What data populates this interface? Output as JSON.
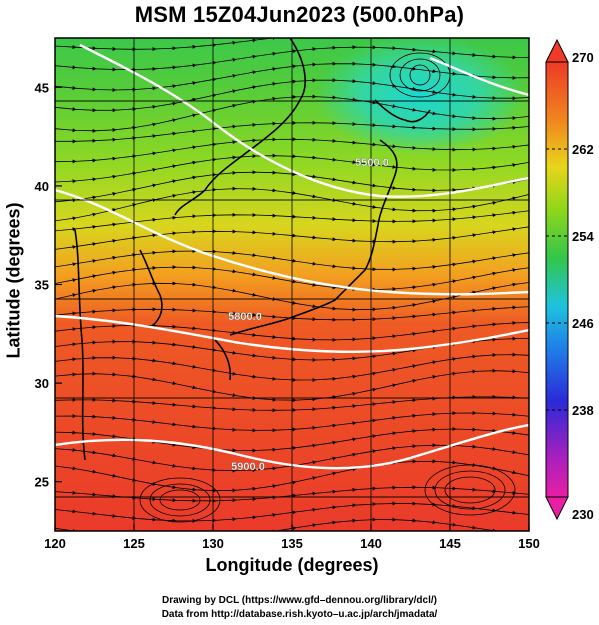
{
  "title": "MSM 15Z04Jun2023 (500.0hPa)",
  "x_axis": {
    "label": "Longitude (degrees)",
    "ticks": [
      "120",
      "125",
      "130",
      "135",
      "140",
      "145",
      "150"
    ]
  },
  "y_axis": {
    "label": "Latitude  (degrees)",
    "ticks": [
      "25",
      "30",
      "35",
      "40",
      "45"
    ]
  },
  "colorbar": {
    "ticks": [
      "270",
      "262",
      "254",
      "246",
      "238",
      "230"
    ],
    "min": 230,
    "max": 270,
    "stops": [
      "#e91fa3",
      "#a020c0",
      "#2a2ad8",
      "#1aa0e6",
      "#22d3c6",
      "#39c33a",
      "#8fd61a",
      "#e8d51a",
      "#f08a1e",
      "#ee3a26"
    ]
  },
  "contours": [
    {
      "label": "5900.0",
      "lat_hint": 25.8
    },
    {
      "label": "5800.0",
      "lat_hint": 33.4
    },
    {
      "label": "5500.0",
      "lat_hint": 41.2
    }
  ],
  "credits": {
    "line1": "Drawing by DCL (https://www.gfd–dennou.org/library/dcl/)",
    "line2": "Data from http://database.rish.kyoto–u.ac.jp/arch/jmadata/"
  },
  "chart_data": {
    "type": "heatmap",
    "title": "MSM 15Z04Jun2023 (500.0hPa)",
    "xlabel": "Longitude (degrees)",
    "ylabel": "Latitude  (degrees)",
    "xlim": [
      120,
      150
    ],
    "ylim": [
      22.5,
      47.5
    ],
    "colorbar_range": [
      230,
      270
    ],
    "colorbar_ticks": [
      230,
      238,
      246,
      254,
      262,
      270
    ]
  }
}
